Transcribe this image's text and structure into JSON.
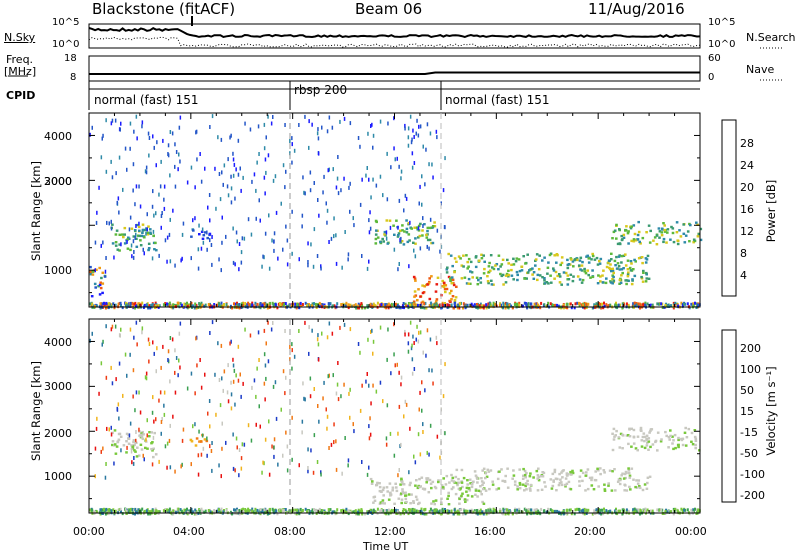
{
  "header": {
    "title": "Blackstone (fitACF)",
    "beam": "Beam 06",
    "date": "11/Aug/2016"
  },
  "top_panels": {
    "nsky_label": "N.Sky",
    "nsky_ticks": [
      "10^5",
      "10^0"
    ],
    "nsearch_label": "N.Search",
    "nsearch_ticks": [
      "10^5",
      "10^0"
    ],
    "freq_label_1": "Freq.",
    "freq_label_2": "[MHz]",
    "freq_ticks": [
      "18",
      "8"
    ],
    "nave_label": "Nave",
    "nave_ticks": [
      "60",
      "0"
    ],
    "cpid_label": "CPID"
  },
  "cpid_segments": [
    {
      "label": "normal (fast) 151",
      "start_hour": 0
    },
    {
      "label": "rbsp 200",
      "start_hour": 8
    },
    {
      "label": "normal (fast) 151",
      "start_hour": 14
    }
  ],
  "x_axis": {
    "label": "Time UT",
    "ticks": [
      "00:00",
      "04:00",
      "08:00",
      "12:00",
      "16:00",
      "20:00",
      "00:00"
    ],
    "range_hours": [
      0,
      24
    ]
  },
  "y_axis": {
    "label": "Slant Range [km]",
    "ticks": [
      "1000",
      "2000",
      "3000",
      "4000"
    ],
    "range_km": [
      180,
      4500
    ]
  },
  "power_colorbar": {
    "label": "Power [dB]",
    "ticks": [
      "4",
      "8",
      "12",
      "16",
      "20",
      "24",
      "28"
    ],
    "colors": [
      "#1c1cff",
      "#2456c8",
      "#2e8aa8",
      "#3a9a70",
      "#5cb83a",
      "#d8c81c",
      "#f09a14",
      "#ee5a12",
      "#e81a10"
    ]
  },
  "velocity_colorbar": {
    "label": "Velocity [m s⁻¹]",
    "ticks": [
      "200",
      "100",
      "50",
      "15",
      "-15",
      "-50",
      "-100",
      "-200"
    ],
    "colors": [
      "#1c3cc8",
      "#2a78a0",
      "#3aa050",
      "#78c83a",
      "#c8c8c0",
      "#f0b41c",
      "#f07814",
      "#ee3c14",
      "#e81010"
    ]
  },
  "chart_data": {
    "type": "heatmap",
    "title": "Blackstone (fitACF)",
    "x_unit": "hours UT",
    "y_unit": "km",
    "power_regions": [
      {
        "t": [
          0.0,
          0.6
        ],
        "r": [
          400,
          1100
        ],
        "level": "mixed"
      },
      {
        "t": [
          0.8,
          2.6
        ],
        "r": [
          1450,
          2050
        ],
        "level": "medium"
      },
      {
        "t": [
          3.9,
          4.7
        ],
        "r": [
          1700,
          1950
        ],
        "level": "low"
      },
      {
        "t": [
          11.2,
          13.6
        ],
        "r": [
          1600,
          2150
        ],
        "level": "medium"
      },
      {
        "t": [
          12.7,
          14.4
        ],
        "r": [
          300,
          900
        ],
        "level": "high"
      },
      {
        "t": [
          14.0,
          22.0
        ],
        "r": [
          700,
          1400
        ],
        "level": "medium"
      },
      {
        "t": [
          20.5,
          24.0
        ],
        "r": [
          1600,
          2100
        ],
        "level": "medium"
      }
    ],
    "velocity_regions": [
      {
        "t": [
          0.8,
          2.6
        ],
        "r": [
          1450,
          2050
        ],
        "level": "ground"
      },
      {
        "t": [
          3.9,
          4.7
        ],
        "r": [
          1700,
          1950
        ],
        "level": "negative"
      },
      {
        "t": [
          11.0,
          15.5
        ],
        "r": [
          400,
          1000
        ],
        "level": "ground"
      },
      {
        "t": [
          14.0,
          22.0
        ],
        "r": [
          700,
          1200
        ],
        "level": "ground"
      },
      {
        "t": [
          20.5,
          24.0
        ],
        "r": [
          1600,
          2100
        ],
        "level": "ground"
      }
    ]
  }
}
